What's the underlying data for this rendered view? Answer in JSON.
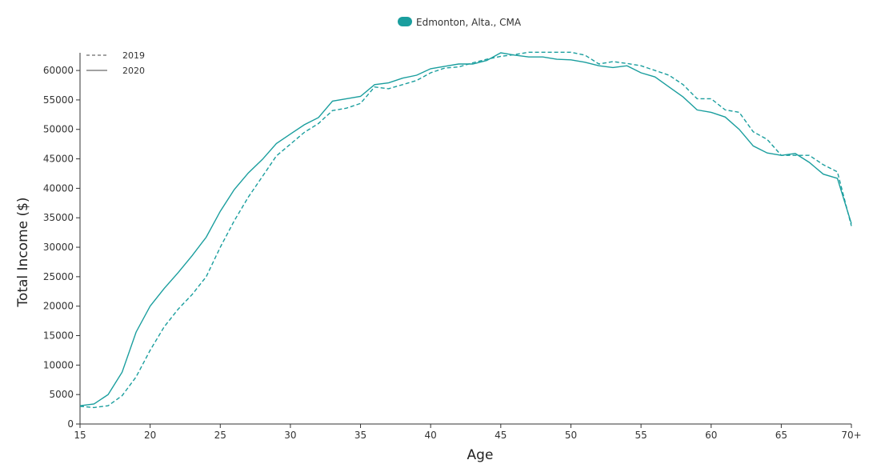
{
  "chart_data": {
    "type": "line",
    "xlabel": "Age",
    "ylabel": "Total Income ($)",
    "x_tick_labels": [
      "15",
      "20",
      "25",
      "30",
      "35",
      "40",
      "45",
      "50",
      "55",
      "60",
      "65",
      "70+"
    ],
    "x_tick_values": [
      15,
      20,
      25,
      30,
      35,
      40,
      45,
      50,
      55,
      60,
      65,
      70
    ],
    "y_ticks": [
      0,
      5000,
      10000,
      15000,
      20000,
      25000,
      30000,
      35000,
      40000,
      45000,
      50000,
      55000,
      60000
    ],
    "xlim": [
      15,
      70
    ],
    "ylim": [
      0,
      63000
    ],
    "color": "#1a9e9e",
    "geo_legend": "Edmonton, Alta., CMA",
    "style_legend": [
      {
        "label": "2019",
        "dash": "dashed"
      },
      {
        "label": "2020",
        "dash": "solid"
      }
    ],
    "x": [
      15,
      16,
      17,
      18,
      19,
      20,
      21,
      22,
      23,
      24,
      25,
      26,
      27,
      28,
      29,
      30,
      31,
      32,
      33,
      34,
      35,
      36,
      37,
      38,
      39,
      40,
      41,
      42,
      43,
      44,
      45,
      46,
      47,
      48,
      49,
      50,
      51,
      52,
      53,
      54,
      55,
      56,
      57,
      58,
      59,
      60,
      61,
      62,
      63,
      64,
      65,
      66,
      67,
      68,
      69,
      70
    ],
    "series": [
      {
        "name": "2019",
        "dash": "dashed",
        "values": [
          3000,
          2800,
          3100,
          4800,
          8000,
          12500,
          16500,
          19500,
          22000,
          25000,
          30000,
          34500,
          38500,
          42000,
          45500,
          47500,
          49500,
          51000,
          53200,
          53600,
          54400,
          57200,
          56900,
          57600,
          58300,
          59600,
          60400,
          60600,
          61300,
          61900,
          62400,
          62700,
          63100,
          63100,
          63100,
          63100,
          62600,
          61100,
          61500,
          61200,
          60800,
          60000,
          59200,
          57600,
          55200,
          55200,
          53300,
          52900,
          49600,
          48300,
          45600,
          45600,
          45600,
          44000,
          42800,
          33600
        ]
      },
      {
        "name": "2020",
        "dash": "solid",
        "values": [
          3100,
          3400,
          5000,
          8800,
          15600,
          20000,
          23000,
          25700,
          28600,
          31700,
          36100,
          39800,
          42600,
          44900,
          47600,
          49200,
          50800,
          52000,
          54800,
          55200,
          55600,
          57600,
          57900,
          58700,
          59200,
          60300,
          60700,
          61100,
          61100,
          61700,
          63000,
          62600,
          62300,
          62300,
          61900,
          61800,
          61400,
          60800,
          60500,
          60800,
          59600,
          58900,
          57200,
          55500,
          53300,
          52900,
          52100,
          50000,
          47200,
          46000,
          45600,
          45900,
          44400,
          42400,
          41700,
          34000
        ]
      }
    ]
  }
}
